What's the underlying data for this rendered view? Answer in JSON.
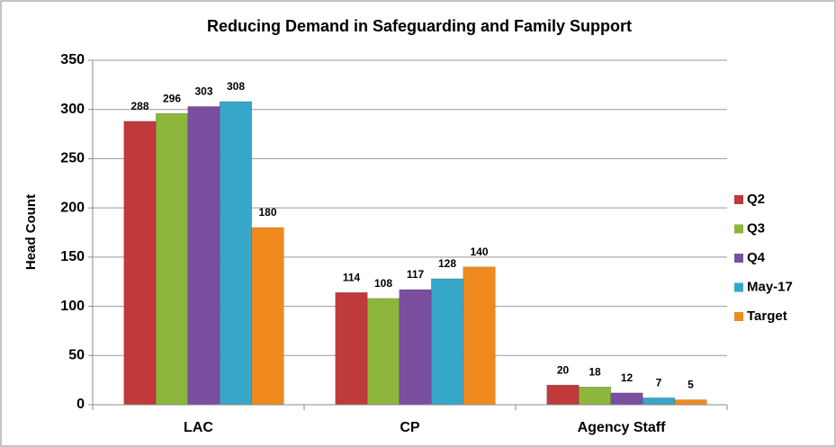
{
  "chart_data": {
    "type": "bar",
    "title": "Reducing Demand in Safeguarding and Family Support",
    "y_label": "Head Count",
    "categories": [
      "LAC",
      "CP",
      "Agency Staff"
    ],
    "series": [
      {
        "name": "Q2",
        "color": "#c0393b",
        "values": [
          288,
          114,
          20
        ]
      },
      {
        "name": "Q3",
        "color": "#8db63c",
        "values": [
          296,
          108,
          18
        ]
      },
      {
        "name": "Q4",
        "color": "#7a4fa0",
        "values": [
          303,
          117,
          12
        ]
      },
      {
        "name": "May-17",
        "color": "#36a7c9",
        "values": [
          308,
          128,
          7
        ]
      },
      {
        "name": "Target",
        "color": "#f08a1e",
        "values": [
          180,
          140,
          5
        ]
      }
    ],
    "ylim": [
      0,
      350
    ],
    "yticks": [
      0,
      50,
      100,
      150,
      200,
      250,
      300,
      350
    ],
    "grid": true,
    "legend": "right"
  }
}
